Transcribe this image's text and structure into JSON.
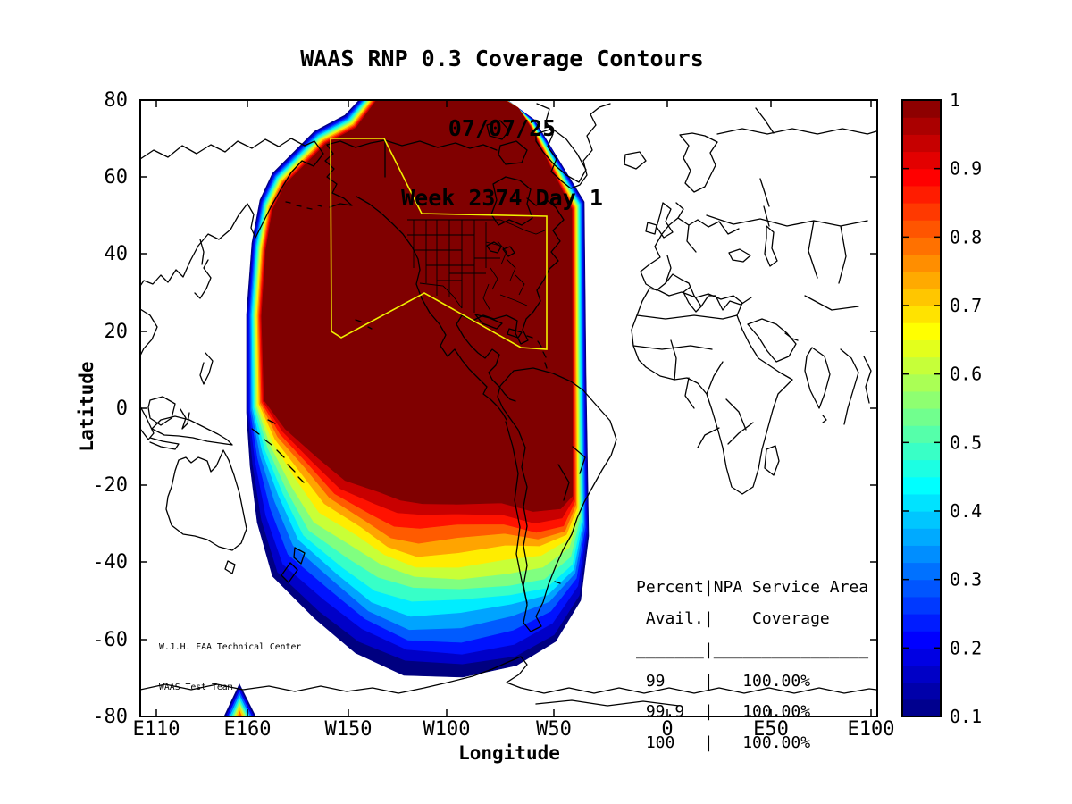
{
  "title": {
    "line1": "WAAS RNP 0.3 Coverage Contours",
    "line2": "07/07/25",
    "line3": "Week 2374 Day 1"
  },
  "axes": {
    "x_label": "Longitude",
    "y_label": "Latitude",
    "x_tick_labels": [
      "E110",
      "E160",
      "W150",
      "W100",
      "W50",
      "0",
      "E50",
      "E100"
    ],
    "y_tick_labels": [
      "80",
      "60",
      "40",
      "20",
      "0",
      "-20",
      "-40",
      "-60",
      "-80"
    ]
  },
  "colorbar": {
    "tick_labels": [
      "1",
      "0.9",
      "0.8",
      "0.7",
      "0.6",
      "0.5",
      "0.4",
      "0.3",
      "0.2",
      "0.1"
    ],
    "value_min": 0.1,
    "value_max": 1,
    "colormap": "jet"
  },
  "service_area_table": {
    "line1": "Percent|NPA Service Area",
    "line2": " Avail.|    Coverage",
    "divider": "_______|________________",
    "rows": [
      " 99    |   100.00%",
      " 99.9  |   100.00%",
      " 100   |   100.00%"
    ]
  },
  "credit": {
    "line1": "W.J.H. FAA Technical Center",
    "line2": "WAAS Test Team"
  },
  "colors": {
    "service_area_outline": "#f0f000",
    "coastline": "#000000",
    "max_coverage_fill": "#800000",
    "min_coverage_fill": "#000080"
  },
  "chart_data": {
    "type": "heatmap",
    "subtype": "filled_contour_coverage_map",
    "title": "WAAS RNP 0.3 Coverage Contours",
    "date": "07/07/25",
    "gps_week": "2374",
    "gps_day": "1",
    "xlabel": "Longitude",
    "ylabel": "Latitude",
    "x_ticks": [
      "E110",
      "E160",
      "W150",
      "W100",
      "W50",
      "0",
      "E50",
      "E100"
    ],
    "y_ticks": [
      80,
      60,
      40,
      20,
      0,
      -20,
      -40,
      -60,
      -80
    ],
    "colorbar": {
      "range": [
        0.1,
        1
      ],
      "ticks": [
        1,
        0.9,
        0.8,
        0.7,
        0.6,
        0.5,
        0.4,
        0.3,
        0.2,
        0.1
      ],
      "colormap": "jet",
      "band_step": 0.025,
      "legend_position": "right"
    },
    "coverage_summary": "Coverage ~1.0 (dark red) over Alaska, Canada, CONUS, Caribbean and the eastern/central Pacific; contour bands decrease through jet colors southward, reaching 0.1 (dark blue) near 60S; thin rainbow rim bounds the region on its north, west and east edges; yellow outline marks the NPA service area over Alaska and CONUS",
    "npa_service_area_table": {
      "columns": [
        "Percent Avail.",
        "NPA Service Area Coverage"
      ],
      "rows": [
        [
          "99",
          "100.00%"
        ],
        [
          "99.9",
          "100.00%"
        ],
        [
          "100",
          "100.00%"
        ]
      ]
    }
  }
}
